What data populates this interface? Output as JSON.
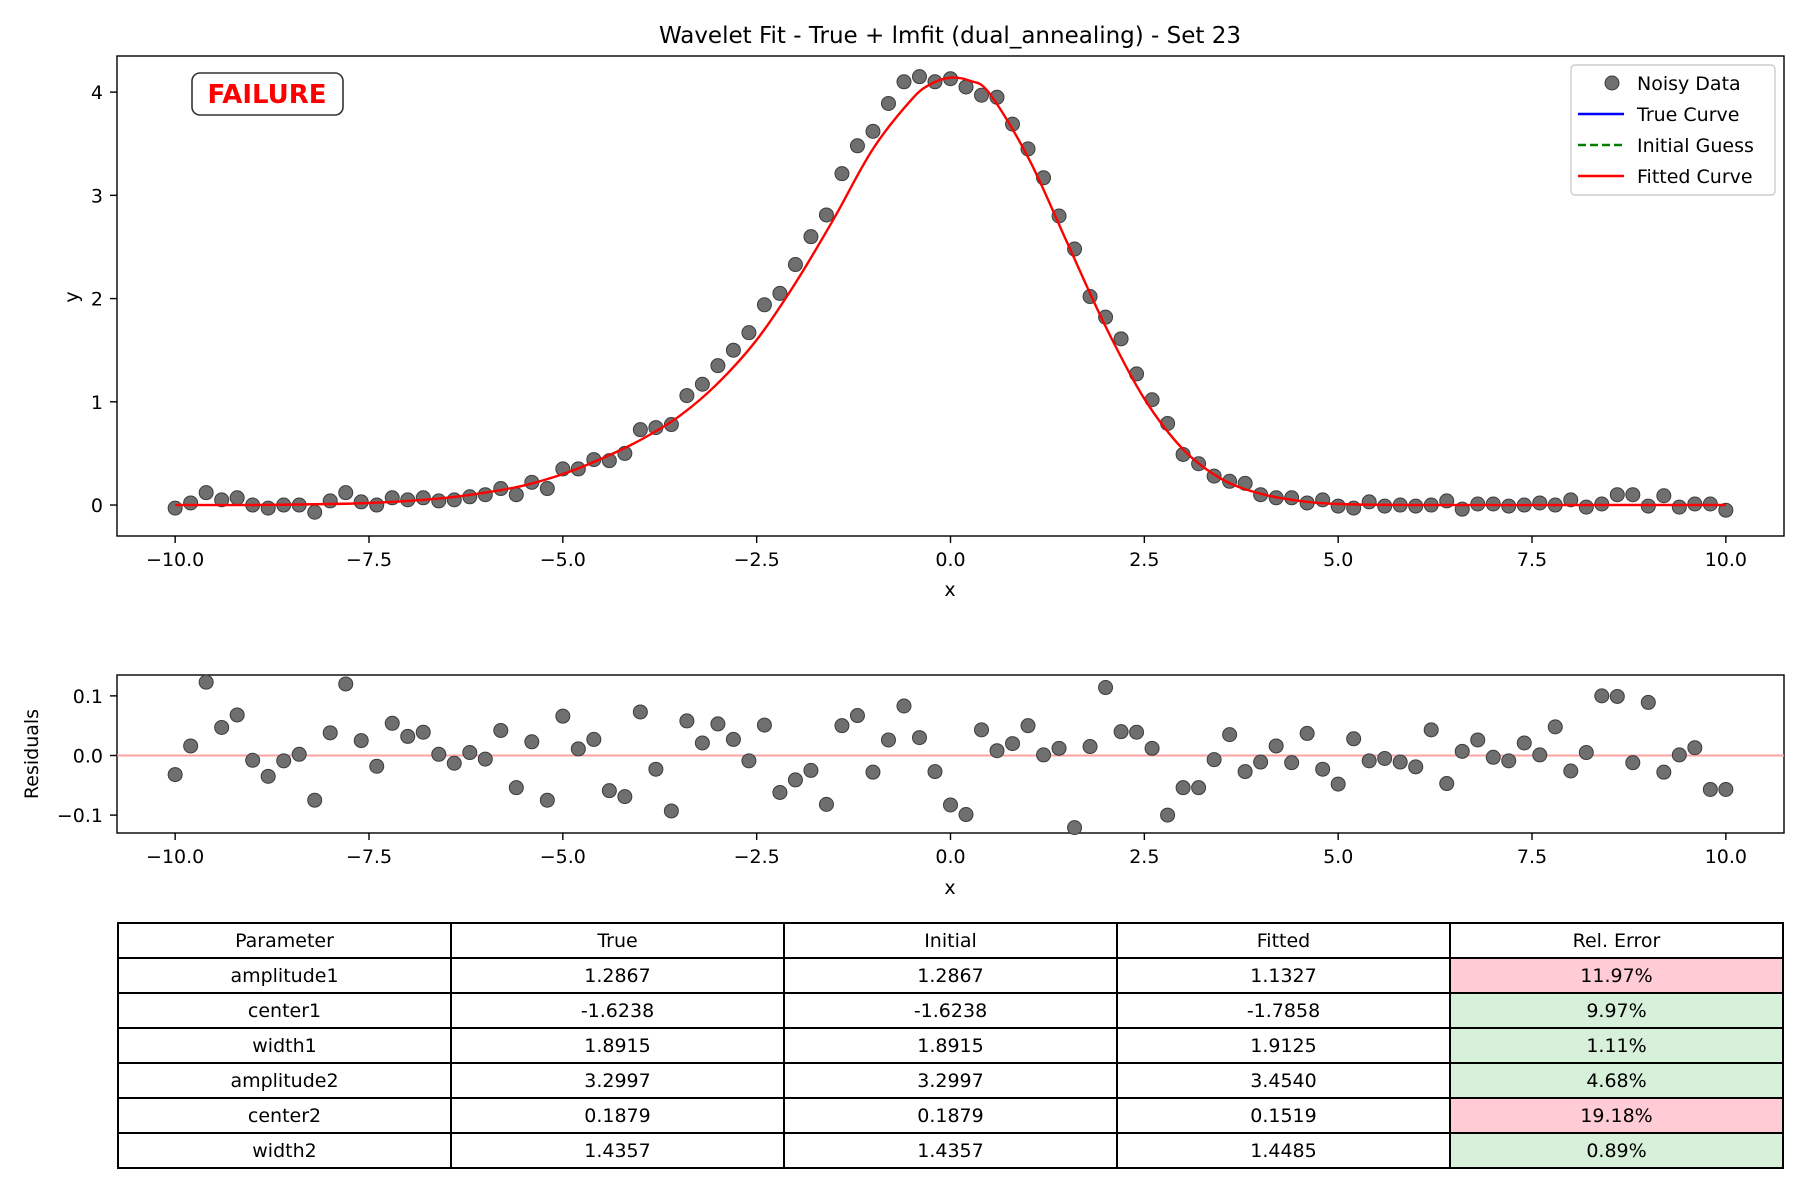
{
  "chart_data": [
    {
      "type": "scatter",
      "title": "Wavelet Fit - True + lmfit (dual_annealing) - Set 23",
      "xlabel": "x",
      "ylabel": "y",
      "xlim": [
        -10.75,
        10.75
      ],
      "ylim": [
        -0.3,
        4.35
      ],
      "xticks": [
        -10.0,
        -7.5,
        -5.0,
        -2.5,
        0.0,
        2.5,
        5.0,
        7.5,
        10.0
      ],
      "xtick_labels": [
        "−10.0",
        "−7.5",
        "−5.0",
        "−2.5",
        "0.0",
        "2.5",
        "5.0",
        "7.5",
        "10.0"
      ],
      "yticks": [
        0,
        1,
        2,
        3,
        4
      ],
      "ytick_labels": [
        "0",
        "1",
        "2",
        "3",
        "4"
      ],
      "grid": false,
      "legend_position": "top-right",
      "annotation": "FAILURE",
      "colors": {
        "noisy": "#6f6f6f",
        "true_curve": "#0000ff",
        "initial_guess": "#008000",
        "fitted": "#ff0000",
        "failure": "#ff0000"
      },
      "series": [
        {
          "name": "Noisy Data",
          "kind": "markers",
          "x": [
            -10.0,
            -9.8,
            -9.6,
            -9.4,
            -9.2,
            -9.0,
            -8.8,
            -8.6,
            -8.4,
            -8.2,
            -8.0,
            -7.8,
            -7.6,
            -7.4,
            -7.2,
            -7.0,
            -6.8,
            -6.6,
            -6.4,
            -6.2,
            -6.0,
            -5.8,
            -5.6,
            -5.4,
            -5.2,
            -5.0,
            -4.8,
            -4.6,
            -4.4,
            -4.2,
            -4.0,
            -3.8,
            -3.6,
            -3.4,
            -3.2,
            -3.0,
            -2.8,
            -2.6,
            -2.4,
            -2.2,
            -2.0,
            -1.8,
            -1.6,
            -1.4,
            -1.2,
            -1.0,
            -0.8,
            -0.6,
            -0.4,
            -0.2,
            0.0,
            0.2,
            0.4,
            0.6,
            0.8,
            1.0,
            1.2,
            1.4,
            1.6,
            1.8,
            2.0,
            2.2,
            2.4,
            2.6,
            2.8,
            3.0,
            3.2,
            3.4,
            3.6,
            3.8,
            4.0,
            4.2,
            4.4,
            4.6,
            4.8,
            5.0,
            5.2,
            5.4,
            5.6,
            5.8,
            6.0,
            6.2,
            6.4,
            6.6,
            6.8,
            7.0,
            7.2,
            7.4,
            7.6,
            7.8,
            8.0,
            8.2,
            8.4,
            8.6,
            8.8,
            9.0,
            9.2,
            9.4,
            9.6,
            9.8,
            10.0
          ],
          "y": [
            -0.03,
            0.02,
            0.12,
            0.05,
            0.07,
            0.0,
            -0.03,
            0.0,
            0.0,
            -0.07,
            0.04,
            0.12,
            0.03,
            0.0,
            0.07,
            0.05,
            0.07,
            0.04,
            0.05,
            0.08,
            0.1,
            0.16,
            0.1,
            0.22,
            0.16,
            0.35,
            0.35,
            0.44,
            0.43,
            0.5,
            0.73,
            0.75,
            0.78,
            1.06,
            1.17,
            1.35,
            1.5,
            1.67,
            1.94,
            2.05,
            2.33,
            2.6,
            2.81,
            3.21,
            3.48,
            3.62,
            3.89,
            4.1,
            4.15,
            4.1,
            4.13,
            4.05,
            3.97,
            3.95,
            3.69,
            3.45,
            3.17,
            2.8,
            2.48,
            2.02,
            1.82,
            1.61,
            1.27,
            1.02,
            0.79,
            0.49,
            0.4,
            0.28,
            0.23,
            0.21,
            0.1,
            0.07,
            0.07,
            0.02,
            0.05,
            -0.01,
            -0.03,
            0.03,
            -0.01,
            0.0,
            -0.01,
            0.0,
            0.04,
            -0.04,
            0.01,
            0.01,
            -0.01,
            0.0,
            0.02,
            0.0,
            0.05,
            -0.02,
            0.01,
            0.1,
            0.1,
            -0.01,
            0.09,
            -0.02,
            0.01,
            0.01,
            -0.05
          ]
        },
        {
          "name": "True Curve",
          "kind": "line",
          "style": "solid"
        },
        {
          "name": "Initial Guess",
          "kind": "line",
          "style": "dashed"
        },
        {
          "name": "Fitted Curve",
          "kind": "line",
          "style": "solid",
          "x": [
            -10.0,
            -9.0,
            -8.0,
            -7.5,
            -7.0,
            -6.5,
            -6.0,
            -5.5,
            -5.0,
            -4.5,
            -4.0,
            -3.5,
            -3.0,
            -2.5,
            -2.0,
            -1.5,
            -1.0,
            -0.5,
            -0.25,
            0.0,
            0.25,
            0.5,
            1.0,
            1.5,
            2.0,
            2.5,
            3.0,
            3.5,
            4.0,
            4.5,
            5.0,
            6.0,
            8.0,
            10.0
          ],
          "y": [
            0.0,
            0.0,
            0.01,
            0.02,
            0.04,
            0.07,
            0.12,
            0.19,
            0.3,
            0.45,
            0.63,
            0.86,
            1.18,
            1.6,
            2.15,
            2.78,
            3.45,
            3.93,
            4.08,
            4.14,
            4.11,
            3.99,
            3.37,
            2.55,
            1.73,
            1.03,
            0.54,
            0.25,
            0.11,
            0.04,
            0.01,
            0.0,
            0.0,
            0.0
          ]
        }
      ]
    },
    {
      "type": "scatter",
      "title": "",
      "xlabel": "x",
      "ylabel": "Residuals",
      "xlim": [
        -10.75,
        10.75
      ],
      "ylim": [
        -0.13,
        0.135
      ],
      "xticks": [
        -10.0,
        -7.5,
        -5.0,
        -2.5,
        0.0,
        2.5,
        5.0,
        7.5,
        10.0
      ],
      "xtick_labels": [
        "−10.0",
        "−7.5",
        "−5.0",
        "−2.5",
        "0.0",
        "2.5",
        "5.0",
        "7.5",
        "10.0"
      ],
      "yticks": [
        -0.1,
        0.0,
        0.1
      ],
      "ytick_labels": [
        "−0.1",
        "0.0",
        "0.1"
      ],
      "grid": false,
      "zero_line": 0.0,
      "colors": {
        "points": "#6f6f6f",
        "zero_line": "#ff9999"
      },
      "series": [
        {
          "kind": "markers",
          "x": [
            -10.0,
            -9.8,
            -9.6,
            -9.4,
            -9.2,
            -9.0,
            -8.8,
            -8.6,
            -8.4,
            -8.2,
            -8.0,
            -7.8,
            -7.6,
            -7.4,
            -7.2,
            -7.0,
            -6.8,
            -6.6,
            -6.4,
            -6.2,
            -6.0,
            -5.8,
            -5.6,
            -5.4,
            -5.2,
            -5.0,
            -4.8,
            -4.6,
            -4.4,
            -4.2,
            -4.0,
            -3.8,
            -3.6,
            -3.4,
            -3.2,
            -3.0,
            -2.8,
            -2.6,
            -2.4,
            -2.2,
            -2.0,
            -1.8,
            -1.6,
            -1.4,
            -1.2,
            -1.0,
            -0.8,
            -0.6,
            -0.4,
            -0.2,
            0.0,
            0.2,
            0.4,
            0.6,
            0.8,
            1.0,
            1.2,
            1.4,
            1.6,
            1.8,
            2.0,
            2.2,
            2.4,
            2.6,
            2.8,
            3.0,
            3.2,
            3.4,
            3.6,
            3.8,
            4.0,
            4.2,
            4.4,
            4.6,
            4.8,
            5.0,
            5.2,
            5.4,
            5.6,
            5.8,
            6.0,
            6.2,
            6.4,
            6.6,
            6.8,
            7.0,
            7.2,
            7.4,
            7.6,
            7.8,
            8.0,
            8.2,
            8.4,
            8.6,
            8.8,
            9.0,
            9.2,
            9.4,
            9.6,
            9.8,
            10.0
          ],
          "y": [
            -0.032,
            0.016,
            0.123,
            0.047,
            0.068,
            -0.008,
            -0.035,
            -0.009,
            0.002,
            -0.075,
            0.038,
            0.12,
            0.025,
            -0.018,
            0.054,
            0.032,
            0.039,
            0.002,
            -0.013,
            0.005,
            -0.006,
            0.042,
            -0.054,
            0.023,
            -0.075,
            0.066,
            0.011,
            0.027,
            -0.059,
            -0.069,
            0.073,
            -0.023,
            -0.093,
            0.058,
            0.021,
            0.053,
            0.027,
            -0.009,
            0.051,
            -0.062,
            -0.041,
            -0.025,
            -0.082,
            0.05,
            0.067,
            -0.028,
            0.026,
            0.083,
            0.03,
            -0.027,
            -0.083,
            -0.099,
            0.043,
            0.008,
            0.02,
            0.05,
            0.001,
            0.012,
            -0.121,
            0.015,
            0.114,
            0.04,
            0.039,
            0.012,
            -0.1,
            -0.054,
            -0.054,
            -0.007,
            0.035,
            -0.027,
            -0.011,
            0.016,
            -0.012,
            0.037,
            -0.023,
            -0.048,
            0.028,
            -0.009,
            -0.005,
            -0.011,
            -0.019,
            0.043,
            -0.047,
            0.007,
            0.026,
            -0.003,
            -0.009,
            0.021,
            0.001,
            0.048,
            -0.026,
            0.005,
            0.1,
            0.099,
            -0.012,
            0.089,
            -0.028,
            0.001,
            0.013,
            -0.057,
            -0.057
          ]
        }
      ]
    },
    {
      "type": "table",
      "columns": [
        "Parameter",
        "True",
        "Initial",
        "Fitted",
        "Rel. Error"
      ],
      "rows": [
        [
          "amplitude1",
          "1.2867",
          "1.2867",
          "1.1327",
          "11.97%"
        ],
        [
          "center1",
          "-1.6238",
          "-1.6238",
          "-1.7858",
          "9.97%"
        ],
        [
          "width1",
          "1.8915",
          "1.8915",
          "1.9125",
          "1.11%"
        ],
        [
          "amplitude2",
          "3.2997",
          "3.2997",
          "3.4540",
          "4.68%"
        ],
        [
          "center2",
          "0.1879",
          "0.1879",
          "0.1519",
          "19.18%"
        ],
        [
          "width2",
          "1.4357",
          "1.4357",
          "1.4485",
          "0.89%"
        ]
      ],
      "error_status": [
        "bad",
        "good",
        "good",
        "good",
        "bad",
        "good"
      ],
      "colors": {
        "bad": "#ffccd5",
        "good": "#d6f0d9"
      }
    }
  ]
}
